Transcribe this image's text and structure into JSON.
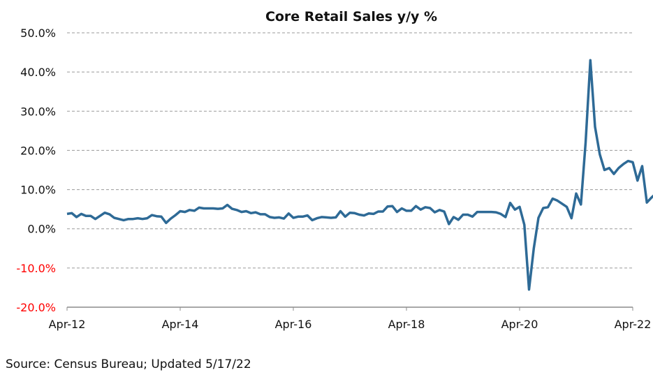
{
  "chart_data": {
    "type": "line",
    "title": "Core Retail Sales y/y %",
    "xlabel": "",
    "ylabel": "",
    "ylim": [
      -20,
      50
    ],
    "y_ticks": [
      "50.0%",
      "40.0%",
      "30.0%",
      "20.0%",
      "10.0%",
      "0.0%",
      "-10.0%",
      "-20.0%"
    ],
    "y_tick_values": [
      50,
      40,
      30,
      20,
      10,
      0,
      -10,
      -20
    ],
    "negative_tick_color": "#ff0000",
    "x_ticks": [
      "Apr-12",
      "Apr-14",
      "Apr-16",
      "Apr-18",
      "Apr-20",
      "Apr-22"
    ],
    "x_tick_months": [
      0,
      24,
      48,
      72,
      96,
      120
    ],
    "grid": "horizontal-dashed",
    "series_color": "#2e6a96",
    "series": [
      {
        "values": [
          3.8,
          4.0,
          3.0,
          3.8,
          3.3,
          3.3,
          2.5,
          3.3,
          4.1,
          3.7,
          2.8,
          2.5,
          2.2,
          2.5,
          2.5,
          2.7,
          2.5,
          2.7,
          3.5,
          3.2,
          3.1,
          1.5,
          2.6,
          3.5,
          4.5,
          4.3,
          4.8,
          4.6,
          5.4,
          5.2,
          5.2,
          5.2,
          5.1,
          5.2,
          6.1,
          5.1,
          4.8,
          4.3,
          4.5,
          4.0,
          4.2,
          3.7,
          3.7,
          3.0,
          2.8,
          2.9,
          2.6,
          3.9,
          2.8,
          3.1,
          3.1,
          3.4,
          2.2,
          2.7,
          3.0,
          2.9,
          2.8,
          2.9,
          4.5,
          3.1,
          4.1,
          4.0,
          3.6,
          3.4,
          3.9,
          3.8,
          4.4,
          4.4,
          5.7,
          5.8,
          4.3,
          5.2,
          4.6,
          4.6,
          5.8,
          4.9,
          5.5,
          5.3,
          4.2,
          4.8,
          4.4,
          1.2,
          3.0,
          2.3,
          3.6,
          3.6,
          3.1,
          4.3,
          4.3,
          4.3,
          4.3,
          4.2,
          3.8,
          3.0,
          6.6,
          4.9,
          5.6,
          1.0,
          -15.5,
          -5.0,
          2.8,
          5.3,
          5.5,
          7.7,
          7.2,
          6.4,
          5.6,
          2.7,
          9.0,
          6.2,
          22.0,
          43.0,
          26.0,
          19.0,
          15.0,
          15.5,
          14.0,
          15.5,
          16.5,
          17.3,
          17.0,
          12.3,
          16.0,
          6.7,
          8.0,
          9.1
        ]
      }
    ],
    "source": "Source:  Census Bureau; Updated 5/17/22"
  }
}
